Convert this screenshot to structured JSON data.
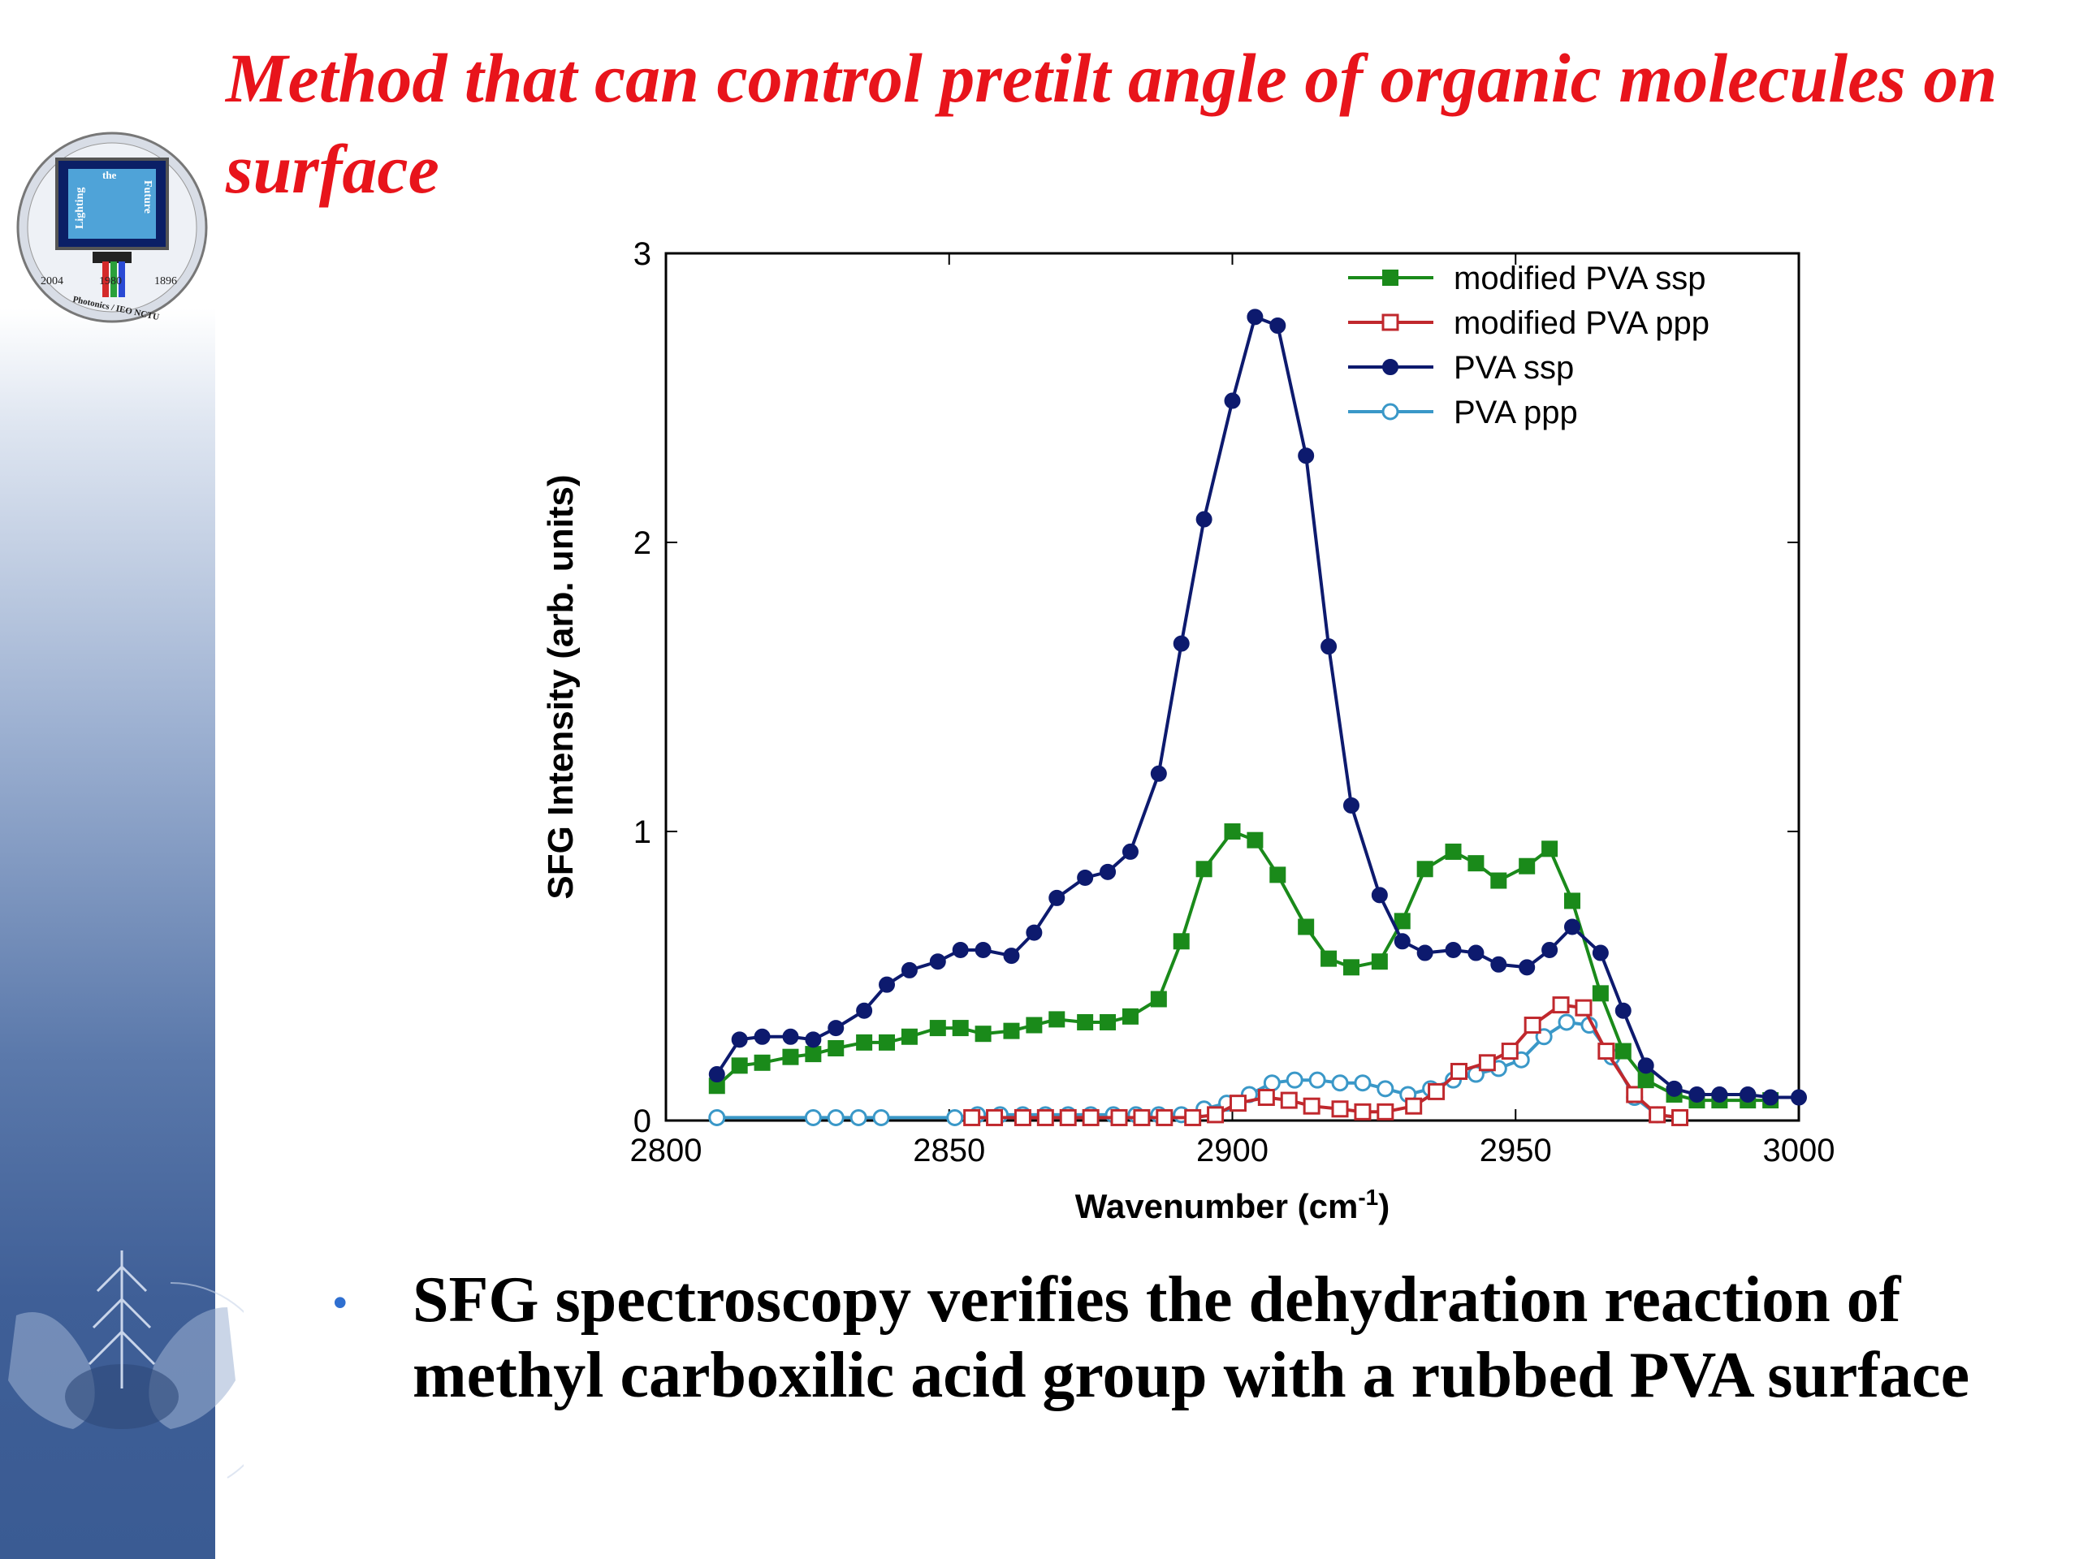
{
  "slide": {
    "title": "Method that can control pretilt angle of organic molecules on surface",
    "bullet_text": "SFG spectroscopy verifies the dehydration reaction of methyl carboxilic acid group with a rubbed PVA surface",
    "bullet_color": "#2f6fd0",
    "title_color": "#e8141b"
  },
  "logo": {
    "icon": "lighting-the-future-logo",
    "words": [
      "Lighting",
      "the",
      "Future"
    ],
    "years": [
      "2004",
      "1980",
      "1896"
    ],
    "org": "Photonics / IEO NCTU"
  },
  "chart_data": {
    "type": "line",
    "xlabel": "Wavenumber (cm",
    "xlabel_sup": "-1",
    "xlabel_end": ")",
    "ylabel": "SFG Intensity (arb. units)",
    "xlim": [
      2800,
      3000
    ],
    "ylim": [
      0,
      3
    ],
    "xticks": [
      2800,
      2850,
      2900,
      2950,
      3000
    ],
    "yticks": [
      0,
      1,
      2,
      3
    ],
    "legend_position": "top-right",
    "grid": false,
    "series": [
      {
        "name": "modified PVA ssp",
        "color": "#1a8a1a",
        "marker": "square-filled",
        "x": [
          2809,
          2813,
          2817,
          2822,
          2826,
          2830,
          2835,
          2839,
          2843,
          2848,
          2852,
          2856,
          2861,
          2865,
          2869,
          2874,
          2878,
          2882,
          2887,
          2891,
          2895,
          2900,
          2904,
          2908,
          2913,
          2917,
          2921,
          2926,
          2930,
          2934,
          2939,
          2943,
          2947,
          2952,
          2956,
          2960,
          2965,
          2969,
          2973,
          2978,
          2982,
          2986,
          2991,
          2995
        ],
        "y": [
          0.12,
          0.19,
          0.2,
          0.22,
          0.23,
          0.25,
          0.27,
          0.27,
          0.29,
          0.32,
          0.32,
          0.3,
          0.31,
          0.33,
          0.35,
          0.34,
          0.34,
          0.36,
          0.42,
          0.62,
          0.87,
          1.0,
          0.97,
          0.85,
          0.67,
          0.56,
          0.53,
          0.55,
          0.69,
          0.87,
          0.93,
          0.89,
          0.83,
          0.88,
          0.94,
          0.76,
          0.44,
          0.24,
          0.14,
          0.09,
          0.07,
          0.07,
          0.07,
          0.07
        ]
      },
      {
        "name": "modified PVA ppp",
        "color": "#c0282d",
        "marker": "square-open",
        "x": [
          2854,
          2858,
          2863,
          2867,
          2871,
          2875,
          2880,
          2884,
          2888,
          2893,
          2897,
          2901,
          2906,
          2910,
          2914,
          2919,
          2923,
          2927,
          2932,
          2936,
          2940,
          2945,
          2949,
          2953,
          2958,
          2962,
          2966,
          2971,
          2975,
          2979
        ],
        "y": [
          0.01,
          0.01,
          0.01,
          0.01,
          0.01,
          0.01,
          0.01,
          0.01,
          0.01,
          0.01,
          0.02,
          0.06,
          0.08,
          0.07,
          0.05,
          0.04,
          0.03,
          0.03,
          0.05,
          0.1,
          0.17,
          0.2,
          0.24,
          0.33,
          0.4,
          0.39,
          0.24,
          0.09,
          0.02,
          0.01
        ]
      },
      {
        "name": "PVA ssp",
        "color": "#0d1a6e",
        "marker": "circle-filled",
        "x": [
          2809,
          2813,
          2817,
          2822,
          2826,
          2830,
          2835,
          2839,
          2843,
          2848,
          2852,
          2856,
          2861,
          2865,
          2869,
          2874,
          2878,
          2882,
          2887,
          2891,
          2895,
          2900,
          2904,
          2908,
          2913,
          2917,
          2921,
          2926,
          2930,
          2934,
          2939,
          2943,
          2947,
          2952,
          2956,
          2960,
          2965,
          2969,
          2973,
          2978,
          2982,
          2986,
          2991,
          2995,
          3000
        ],
        "y": [
          0.16,
          0.28,
          0.29,
          0.29,
          0.28,
          0.32,
          0.38,
          0.47,
          0.52,
          0.55,
          0.59,
          0.59,
          0.57,
          0.65,
          0.77,
          0.84,
          0.86,
          0.93,
          1.2,
          1.65,
          2.08,
          2.49,
          2.78,
          2.75,
          2.3,
          1.64,
          1.09,
          0.78,
          0.62,
          0.58,
          0.59,
          0.58,
          0.54,
          0.53,
          0.59,
          0.67,
          0.58,
          0.38,
          0.19,
          0.11,
          0.09,
          0.09,
          0.09,
          0.08,
          0.08
        ]
      },
      {
        "name": "PVA ppp",
        "color": "#3a98c8",
        "marker": "circle-open",
        "x": [
          2809,
          2826,
          2830,
          2834,
          2838,
          2851,
          2855,
          2859,
          2863,
          2867,
          2871,
          2875,
          2879,
          2883,
          2887,
          2891,
          2895,
          2899,
          2903,
          2907,
          2911,
          2915,
          2919,
          2923,
          2927,
          2931,
          2935,
          2939,
          2943,
          2947,
          2951,
          2955,
          2959,
          2963,
          2967,
          2971,
          2975,
          2979
        ],
        "y": [
          0.01,
          0.01,
          0.01,
          0.01,
          0.01,
          0.01,
          0.02,
          0.02,
          0.02,
          0.02,
          0.02,
          0.02,
          0.02,
          0.02,
          0.02,
          0.02,
          0.04,
          0.06,
          0.09,
          0.13,
          0.14,
          0.14,
          0.13,
          0.13,
          0.11,
          0.09,
          0.11,
          0.14,
          0.16,
          0.18,
          0.21,
          0.29,
          0.34,
          0.33,
          0.22,
          0.08,
          0.02,
          0.01
        ]
      }
    ]
  }
}
